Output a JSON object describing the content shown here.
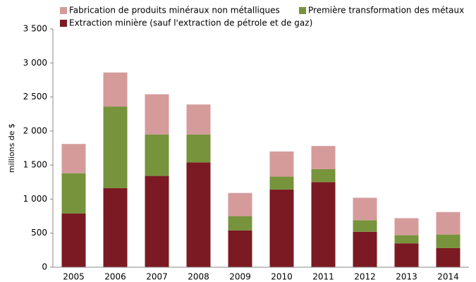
{
  "chart_data": {
    "type": "stacked_bar",
    "y_label": "millions de $",
    "categories": [
      "2005",
      "2006",
      "2007",
      "2008",
      "2009",
      "2010",
      "2011",
      "2012",
      "2013",
      "2014"
    ],
    "series": [
      {
        "name": "Extraction minière (sauf l'extraction de pétrole et de gaz)",
        "color": "#7b1a22",
        "values": [
          790,
          1160,
          1340,
          1540,
          540,
          1140,
          1250,
          520,
          350,
          280
        ]
      },
      {
        "name": "Première transformation des métaux",
        "color": "#77933c",
        "values": [
          590,
          1200,
          610,
          410,
          210,
          190,
          190,
          170,
          120,
          200
        ]
      },
      {
        "name": "Fabrication de produits minéraux non métalliques",
        "color": "#d59b9b",
        "values": [
          430,
          500,
          590,
          440,
          340,
          370,
          340,
          330,
          250,
          330
        ]
      }
    ],
    "ylim": [
      0,
      3500
    ],
    "yticks": [
      0,
      500,
      {
        "value": 1000,
        "label": "1 000"
      },
      {
        "value": 1500,
        "label": "1 500"
      },
      {
        "value": 2000,
        "label": "2 000"
      },
      {
        "value": 2500,
        "label": "2 500"
      },
      {
        "value": 3000,
        "label": "3 000"
      },
      {
        "value": 3500,
        "label": "3 500"
      }
    ],
    "grid": false
  }
}
